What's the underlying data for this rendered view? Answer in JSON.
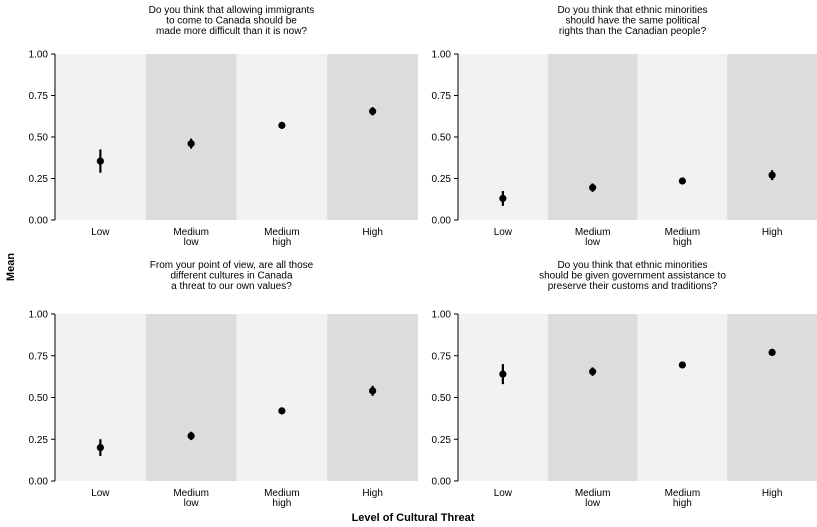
{
  "figure": {
    "ylabel": "Mean",
    "xlabel": "Level of Cultural Threat"
  },
  "chart_data": [
    {
      "type": "scatter",
      "title_lines": [
        "Do you think that allowing immigrants",
        "to come to Canada should be",
        "made more difficult than it is now?"
      ],
      "categories": [
        [
          "Low"
        ],
        [
          "Medium",
          "low"
        ],
        [
          "Medium",
          "high"
        ],
        [
          "High"
        ]
      ],
      "values": [
        0.355,
        0.46,
        0.57,
        0.655
      ],
      "ci_low": [
        0.285,
        0.43,
        0.55,
        0.63
      ],
      "ci_high": [
        0.425,
        0.49,
        0.59,
        0.68
      ],
      "ylim": [
        0,
        1
      ],
      "yticks": [
        "0.00",
        "0.25",
        "0.50",
        "0.75",
        "1.00"
      ]
    },
    {
      "type": "scatter",
      "title_lines": [
        "Do you think that ethnic minorities",
        "should have the same political",
        "rights than the Canadian people?"
      ],
      "categories": [
        [
          "Low"
        ],
        [
          "Medium",
          "low"
        ],
        [
          "Medium",
          "high"
        ],
        [
          "High"
        ]
      ],
      "values": [
        0.13,
        0.195,
        0.235,
        0.27
      ],
      "ci_low": [
        0.085,
        0.17,
        0.22,
        0.24
      ],
      "ci_high": [
        0.175,
        0.22,
        0.25,
        0.3
      ],
      "ylim": [
        0,
        1
      ],
      "yticks": [
        "0.00",
        "0.25",
        "0.50",
        "0.75",
        "1.00"
      ]
    },
    {
      "type": "scatter",
      "title_lines": [
        "From your point of view, are all those",
        "different cultures in Canada",
        "a threat to our own values?"
      ],
      "categories": [
        [
          "Low"
        ],
        [
          "Medium",
          "low"
        ],
        [
          "Medium",
          "high"
        ],
        [
          "High"
        ]
      ],
      "values": [
        0.2,
        0.27,
        0.42,
        0.54
      ],
      "ci_low": [
        0.15,
        0.245,
        0.4,
        0.51
      ],
      "ci_high": [
        0.25,
        0.295,
        0.44,
        0.57
      ],
      "ylim": [
        0,
        1
      ],
      "yticks": [
        "0.00",
        "0.25",
        "0.50",
        "0.75",
        "1.00"
      ]
    },
    {
      "type": "scatter",
      "title_lines": [
        "Do you think that ethnic minorities",
        "should be given government assistance to",
        "preserve their customs and traditions?"
      ],
      "categories": [
        [
          "Low"
        ],
        [
          "Medium",
          "low"
        ],
        [
          "Medium",
          "high"
        ],
        [
          "High"
        ]
      ],
      "values": [
        0.64,
        0.655,
        0.695,
        0.77
      ],
      "ci_low": [
        0.58,
        0.63,
        0.68,
        0.75
      ],
      "ci_high": [
        0.7,
        0.68,
        0.71,
        0.79
      ],
      "ylim": [
        0,
        1
      ],
      "yticks": [
        "0.00",
        "0.25",
        "0.50",
        "0.75",
        "1.00"
      ]
    }
  ],
  "style": {
    "band_light": "#f2f2f2",
    "band_dark": "#dcdcdc",
    "marker": "#000000"
  }
}
